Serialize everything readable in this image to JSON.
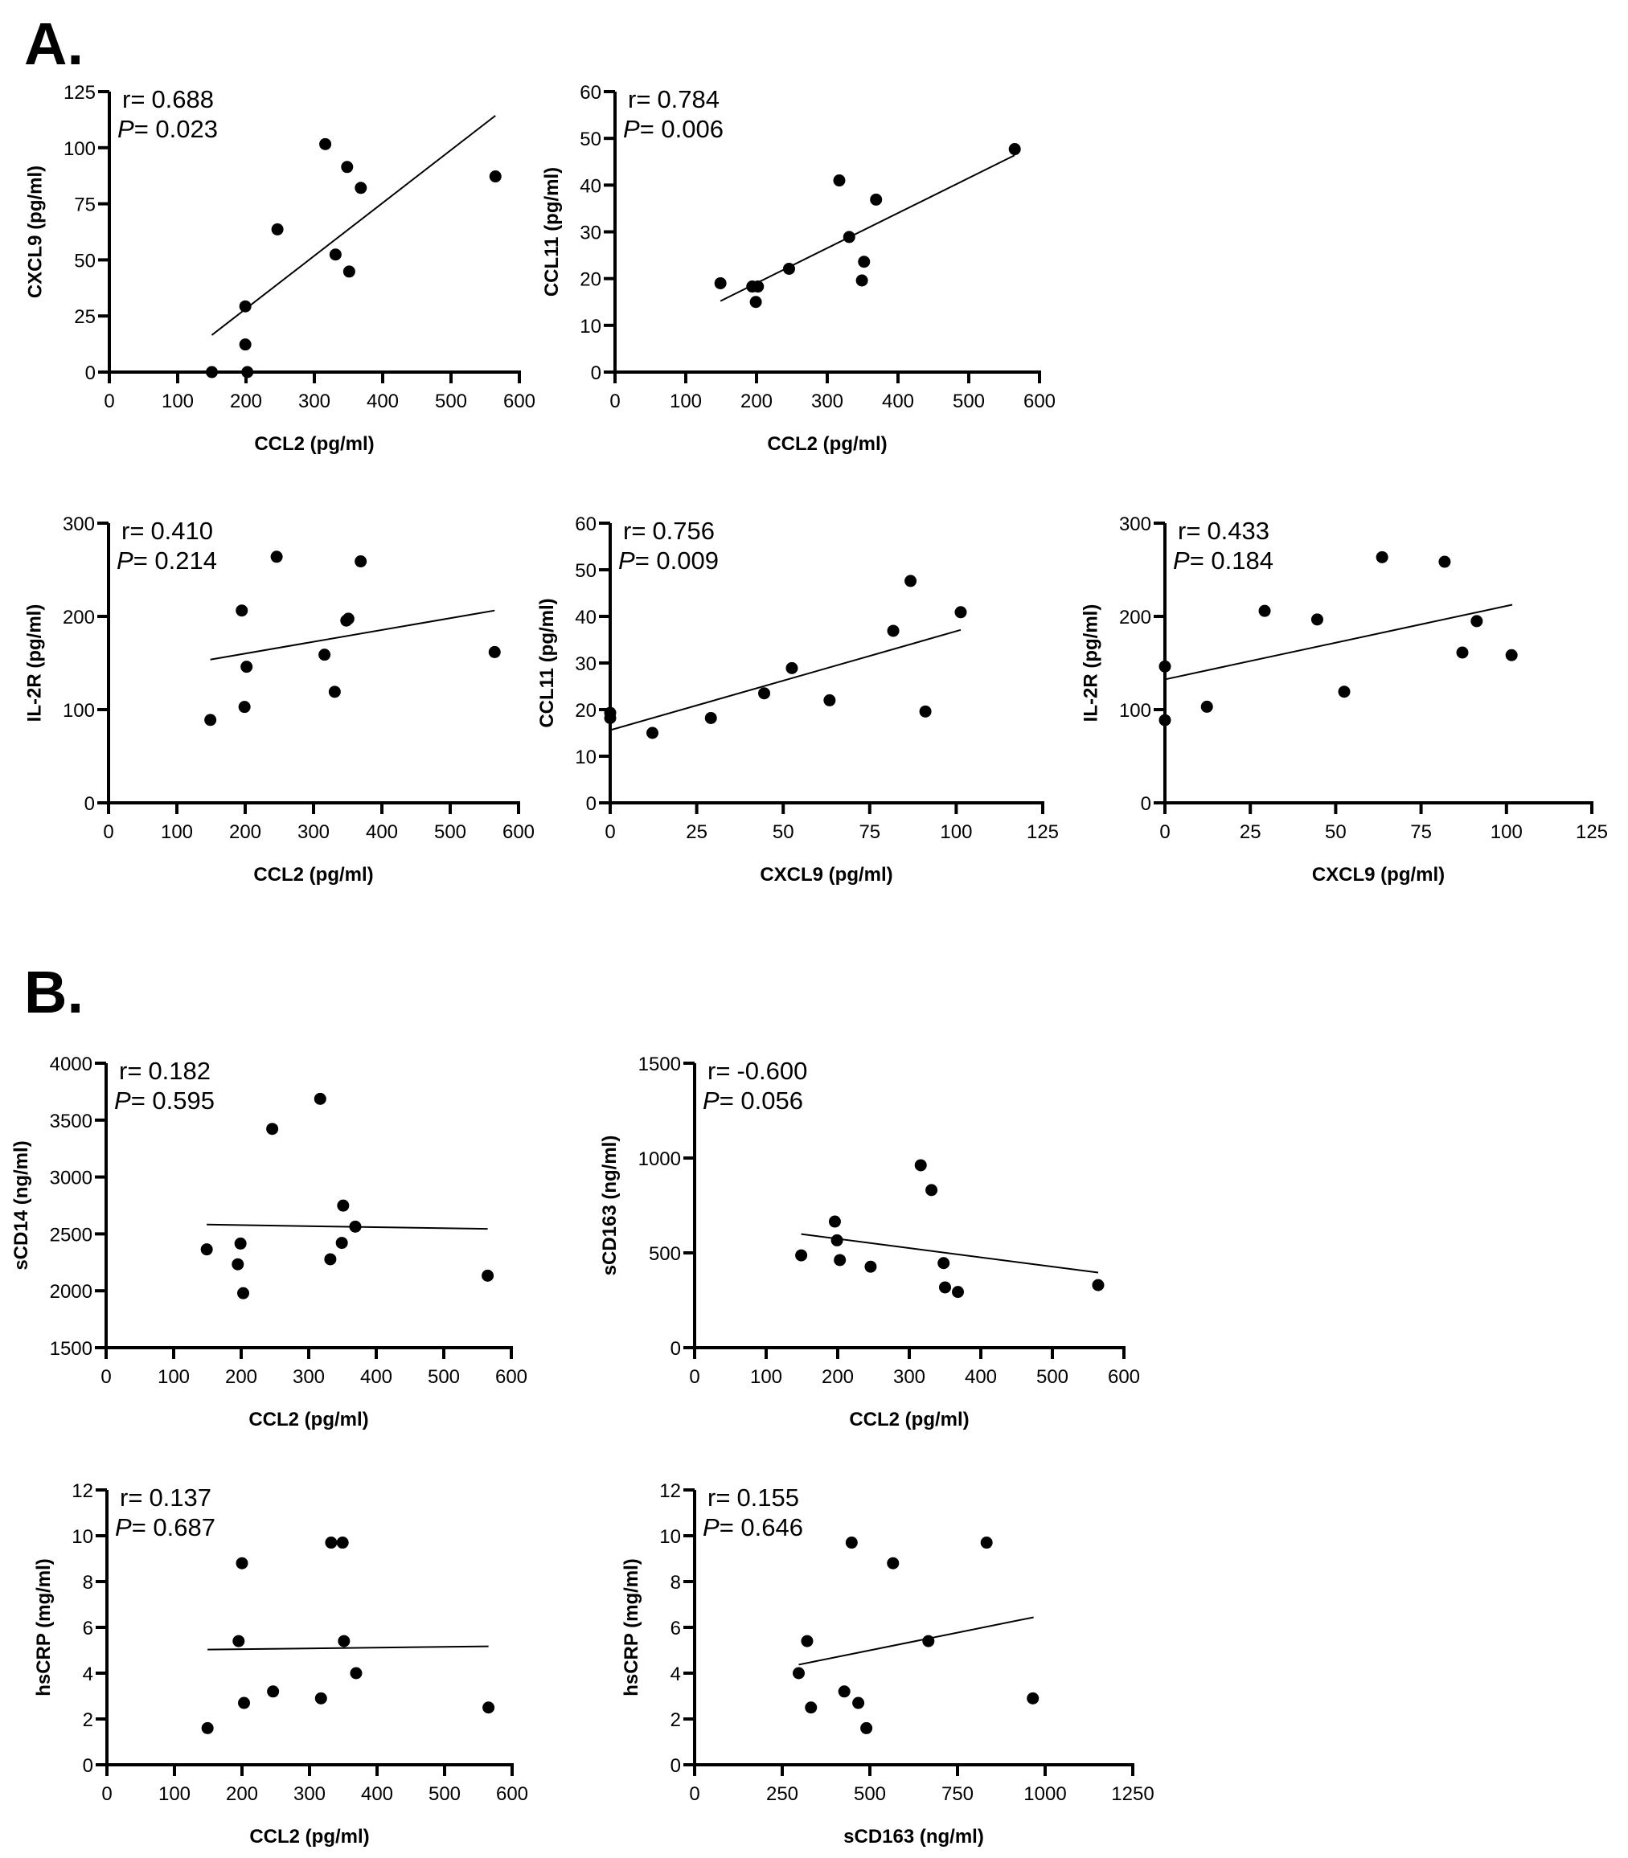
{
  "figure": {
    "panel_letters": [
      "A.",
      "B."
    ]
  },
  "chart_data": [
    {
      "id": "A1",
      "panel": "A",
      "type": "scatter",
      "xlabel": "CCL2 (pg/ml)",
      "ylabel": "CXCL9 (pg/ml)",
      "xlim": [
        0,
        600
      ],
      "ylim": [
        0,
        125
      ],
      "xticks": [
        0,
        100,
        200,
        300,
        400,
        500,
        600
      ],
      "yticks": [
        0,
        25,
        50,
        75,
        100,
        125
      ],
      "stats": {
        "r_label": "r=",
        "r": "0.688",
        "p_label": "P",
        "p": "= 0.023"
      },
      "points": [
        [
          150,
          0
        ],
        [
          199,
          29.3
        ],
        [
          199,
          12.3
        ],
        [
          202,
          0
        ],
        [
          246,
          63.6
        ],
        [
          316,
          101.6
        ],
        [
          348,
          91.4
        ],
        [
          368,
          82.1
        ],
        [
          331,
          52.4
        ],
        [
          351,
          44.8
        ],
        [
          565,
          87.2
        ]
      ],
      "fit_line": [
        [
          150,
          16.5
        ],
        [
          565,
          114.3
        ]
      ]
    },
    {
      "id": "A2",
      "panel": "A",
      "type": "scatter",
      "xlabel": "CCL2 (pg/ml)",
      "ylabel": "CCL11 (pg/ml)",
      "xlim": [
        0,
        600
      ],
      "ylim": [
        0,
        60
      ],
      "xticks": [
        0,
        100,
        200,
        300,
        400,
        500,
        600
      ],
      "yticks": [
        0,
        10,
        20,
        30,
        40,
        50,
        60
      ],
      "stats": {
        "r_label": "r=",
        "r": "0.784",
        "p_label": "P",
        "p": "= 0.006"
      },
      "points": [
        [
          149,
          19.0
        ],
        [
          194,
          18.3
        ],
        [
          202,
          18.3
        ],
        [
          199,
          15.0
        ],
        [
          246,
          22.1
        ],
        [
          317,
          41.0
        ],
        [
          369,
          36.9
        ],
        [
          331,
          28.9
        ],
        [
          352,
          23.6
        ],
        [
          349,
          19.6
        ],
        [
          565,
          47.7
        ]
      ],
      "fit_line": [
        [
          149,
          15.2
        ],
        [
          565,
          46.4
        ]
      ]
    },
    {
      "id": "A3",
      "panel": "A",
      "type": "scatter",
      "xlabel": "CCL2 (pg/ml)",
      "ylabel": "IL-2R (pg/ml)",
      "xlim": [
        0,
        600
      ],
      "ylim": [
        0,
        300
      ],
      "xticks": [
        0,
        100,
        200,
        300,
        400,
        500,
        600
      ],
      "yticks": [
        0,
        100,
        200,
        300
      ],
      "stats": {
        "r_label": "r=",
        "r": "0.410",
        "p_label": "P",
        "p": "= 0.214"
      },
      "points": [
        [
          149,
          88.9
        ],
        [
          195,
          206.3
        ],
        [
          199,
          102.9
        ],
        [
          202,
          146
        ],
        [
          246,
          264
        ],
        [
          316,
          158.9
        ],
        [
          331,
          119.1
        ],
        [
          348,
          195.5
        ],
        [
          351,
          197.5
        ],
        [
          369,
          259
        ],
        [
          565,
          161.7
        ]
      ],
      "fit_line": [
        [
          149,
          153.7
        ],
        [
          565,
          206.3
        ]
      ]
    },
    {
      "id": "A4",
      "panel": "A",
      "type": "scatter",
      "xlabel": "CXCL9 (pg/ml)",
      "ylabel": "CCL11 (pg/ml)",
      "xlim": [
        0,
        125
      ],
      "ylim": [
        0,
        60
      ],
      "xticks": [
        0,
        25,
        50,
        75,
        100,
        125
      ],
      "yticks": [
        0,
        10,
        20,
        30,
        40,
        50,
        60
      ],
      "stats": {
        "r_label": "r=",
        "r": "0.756",
        "p_label": "P",
        "p": "= 0.009"
      },
      "points": [
        [
          0,
          19.3
        ],
        [
          0,
          18.2
        ],
        [
          12.2,
          15.0
        ],
        [
          29.1,
          18.2
        ],
        [
          44.5,
          23.5
        ],
        [
          52.5,
          28.9
        ],
        [
          63.4,
          22.0
        ],
        [
          81.8,
          36.9
        ],
        [
          86.8,
          47.6
        ],
        [
          91.1,
          19.6
        ],
        [
          101.3,
          40.9
        ]
      ],
      "fit_line": [
        [
          0,
          15.6
        ],
        [
          101.3,
          37.1
        ]
      ]
    },
    {
      "id": "A5",
      "panel": "A",
      "type": "scatter",
      "xlabel": "CXCL9 (pg/ml)",
      "ylabel": "IL-2R (pg/ml)",
      "xlim": [
        0,
        125
      ],
      "ylim": [
        0,
        300
      ],
      "xticks": [
        0,
        25,
        50,
        75,
        100,
        125
      ],
      "yticks": [
        0,
        100,
        200,
        300
      ],
      "stats": {
        "r_label": "r=",
        "r": "0.433",
        "p_label": "P",
        "p": "= 0.184"
      },
      "points": [
        [
          0,
          146.3
        ],
        [
          0,
          88.7
        ],
        [
          12.3,
          103.1
        ],
        [
          29.2,
          205.9
        ],
        [
          44.6,
          196.7
        ],
        [
          52.5,
          119.2
        ],
        [
          63.6,
          263.5
        ],
        [
          81.9,
          258.6
        ],
        [
          87.1,
          161.2
        ],
        [
          91.3,
          194.9
        ],
        [
          101.5,
          158.4
        ]
      ],
      "fit_line": [
        [
          0,
          132.4
        ],
        [
          101.7,
          212.5
        ]
      ]
    },
    {
      "id": "B1",
      "panel": "B",
      "type": "scatter",
      "xlabel": "CCL2 (pg/ml)",
      "ylabel": "sCD14 (ng/ml)",
      "xlim": [
        0,
        600
      ],
      "ylim": [
        1500,
        4000
      ],
      "xticks": [
        0,
        100,
        200,
        300,
        400,
        500,
        600
      ],
      "yticks": [
        1500,
        2000,
        2500,
        3000,
        3500,
        4000
      ],
      "stats": {
        "r_label": "r=",
        "r": "0.182",
        "p_label": "P",
        "p": "= 0.595"
      },
      "points": [
        [
          149,
          2364
        ],
        [
          199,
          2415
        ],
        [
          195,
          2233
        ],
        [
          203,
          1979
        ],
        [
          246,
          3423
        ],
        [
          317,
          3687
        ],
        [
          332,
          2277
        ],
        [
          349,
          2421
        ],
        [
          351,
          2749
        ],
        [
          369,
          2564
        ],
        [
          565,
          2133
        ]
      ],
      "fit_line": [
        [
          149,
          2582
        ],
        [
          565,
          2544
        ]
      ]
    },
    {
      "id": "B2",
      "panel": "B",
      "type": "scatter",
      "xlabel": "CCL2 (pg/ml)",
      "ylabel": "sCD163 (ng/ml)",
      "xlim": [
        0,
        600
      ],
      "ylim": [
        0,
        1500
      ],
      "xticks": [
        0,
        100,
        200,
        300,
        400,
        500,
        600
      ],
      "yticks": [
        0,
        500,
        1000,
        1500
      ],
      "stats": {
        "r_label": "r=",
        "r": "-0.600",
        "p_label": "P",
        "p": "= 0.056"
      },
      "points": [
        [
          149,
          487
        ],
        [
          196,
          665
        ],
        [
          199,
          566
        ],
        [
          203,
          462
        ],
        [
          246,
          427
        ],
        [
          316,
          962
        ],
        [
          331,
          831
        ],
        [
          348,
          446
        ],
        [
          350,
          318
        ],
        [
          368,
          294
        ],
        [
          564,
          330
        ]
      ],
      "fit_line": [
        [
          149,
          599
        ],
        [
          564,
          396
        ]
      ]
    },
    {
      "id": "B3",
      "panel": "B",
      "type": "scatter",
      "xlabel": "CCL2 (pg/ml)",
      "ylabel": "hsCRP (mg/ml)",
      "xlim": [
        0,
        600
      ],
      "ylim": [
        0,
        12
      ],
      "xticks": [
        0,
        100,
        200,
        300,
        400,
        500,
        600
      ],
      "yticks": [
        0,
        2,
        4,
        6,
        8,
        10,
        12
      ],
      "stats": {
        "r_label": "r=",
        "r": "0.137",
        "p_label": "P",
        "p": "= 0.687"
      },
      "points": [
        [
          149,
          1.6
        ],
        [
          195,
          5.4
        ],
        [
          200,
          8.8
        ],
        [
          203,
          2.7
        ],
        [
          246,
          3.2
        ],
        [
          317,
          2.9
        ],
        [
          332,
          9.7
        ],
        [
          349,
          9.7
        ],
        [
          351,
          5.4
        ],
        [
          369,
          4.0
        ],
        [
          565,
          2.5
        ]
      ],
      "fit_line": [
        [
          149,
          5.03
        ],
        [
          565,
          5.17
        ]
      ]
    },
    {
      "id": "B4",
      "panel": "B",
      "type": "scatter",
      "xlabel": "sCD163 (ng/ml)",
      "ylabel": "hsCRP (mg/ml)",
      "xlim": [
        0,
        1250
      ],
      "ylim": [
        0,
        12
      ],
      "xticks": [
        0,
        250,
        500,
        750,
        1000,
        1250
      ],
      "yticks": [
        0,
        2,
        4,
        6,
        8,
        10,
        12
      ],
      "stats": {
        "r_label": "r=",
        "r": "0.155",
        "p_label": "P",
        "p": "= 0.646"
      },
      "points": [
        [
          297,
          4.0
        ],
        [
          321,
          5.4
        ],
        [
          332,
          2.5
        ],
        [
          427,
          3.2
        ],
        [
          448,
          9.7
        ],
        [
          467,
          2.7
        ],
        [
          490,
          1.6
        ],
        [
          566,
          8.8
        ],
        [
          667,
          5.4
        ],
        [
          833,
          9.7
        ],
        [
          965,
          2.9
        ]
      ],
      "fit_line": [
        [
          297,
          4.37
        ],
        [
          967,
          6.44
        ]
      ]
    }
  ]
}
